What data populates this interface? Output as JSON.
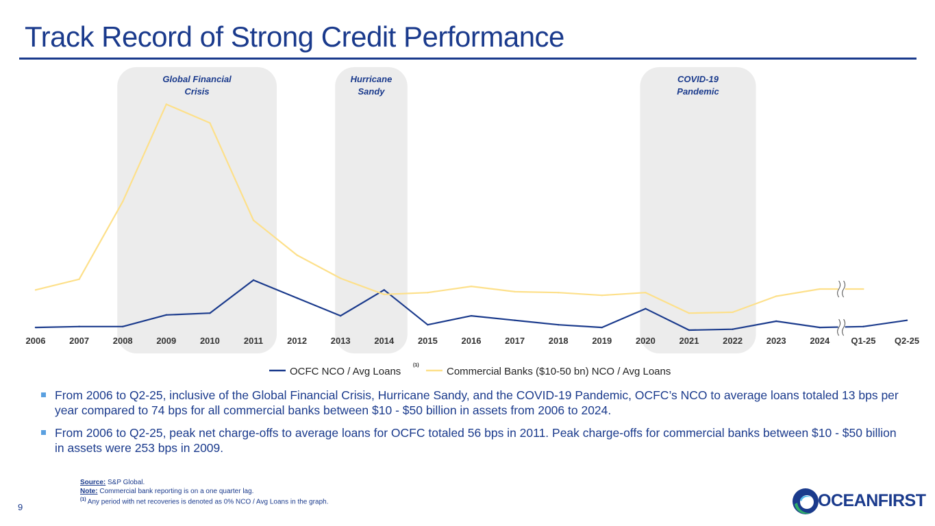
{
  "title": "Track Record of Strong Credit Performance",
  "chart_data": {
    "type": "line",
    "title": "",
    "xlabel": "",
    "ylabel": "",
    "categories": [
      "2006",
      "2007",
      "2008",
      "2009",
      "2010",
      "2011",
      "2012",
      "2013",
      "2014",
      "2015",
      "2016",
      "2017",
      "2018",
      "2019",
      "2020",
      "2021",
      "2022",
      "2023",
      "2024",
      "Q1-25",
      "Q2-25"
    ],
    "ylim": [
      0,
      270
    ],
    "axis_break_after": "2024",
    "series": [
      {
        "name": "OCFC NCO / Avg Loans",
        "color": "#1a3a8c",
        "values": [
          3,
          4,
          4,
          17,
          19,
          56,
          36,
          16,
          45,
          6,
          16,
          11,
          6,
          3,
          24,
          0,
          1,
          10,
          3,
          4,
          11
        ]
      },
      {
        "name": "Commercial Banks ($10-50 bn) NCO / Avg Loans",
        "color": "#fde08a",
        "values": [
          45,
          57,
          144,
          253,
          232,
          123,
          84,
          58,
          40,
          42,
          49,
          43,
          42,
          39,
          42,
          19,
          20,
          38,
          46,
          46,
          null
        ]
      }
    ],
    "legend_note": "(1)",
    "events": [
      {
        "label": "Global Financial Crisis",
        "from": "2008",
        "to": "2011"
      },
      {
        "label": "Hurricane Sandy",
        "from": "2013",
        "to": "2014"
      },
      {
        "label": "COVID-19 Pandemic",
        "from": "2020",
        "to": "2022"
      }
    ]
  },
  "bullets": [
    "From 2006 to Q2-25, inclusive of the Global Financial Crisis, Hurricane Sandy, and the COVID-19 Pandemic, OCFC’s NCO to average loans totaled 13 bps per year compared to 74 bps for all commercial banks between $10 - $50 billion in assets from 2006 to 2024.",
    "From 2006 to Q2-25, peak net charge-offs to average loans for OCFC totaled 56 bps in 2011. Peak charge-offs for commercial banks between $10 - $50 billion in assets were 253 bps in 2009."
  ],
  "footnotes": {
    "source_label": "Source:",
    "source_text": " S&P Global.",
    "note_label": "Note:",
    "note_text": " Commercial bank reporting is on a one quarter lag.",
    "fn1_marker": "(1)",
    "fn1_text": " Any period with net recoveries is denoted as 0% NCO / Avg Loans in the graph."
  },
  "page_number": "9",
  "logo_text": "OCEANFIRST",
  "colors": {
    "brand_blue": "#1a3a8c",
    "bank_line": "#fde08a",
    "event_band": "#ececec",
    "bullet": "#5aa0e0"
  }
}
